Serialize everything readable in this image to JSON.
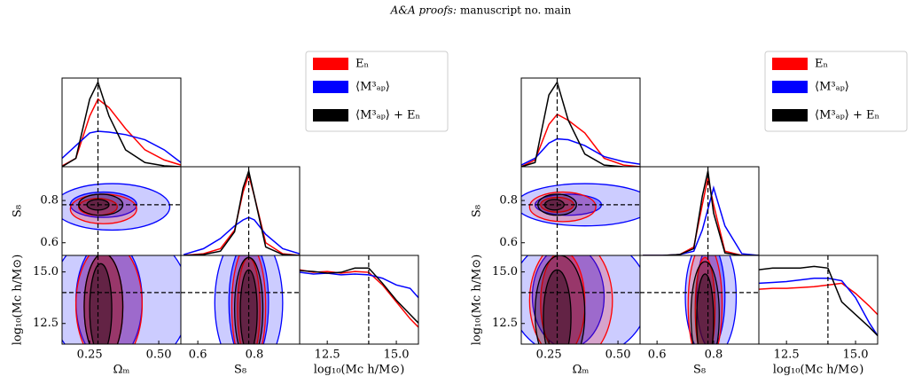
{
  "header": {
    "journal": "A&A proofs:",
    "manuscript": "manuscript no. main"
  },
  "chart_data": [
    {
      "type": "corner",
      "diag_ylim": [
        0,
        1.05
      ],
      "params": [
        {
          "label": "Ωₘ",
          "lim": [
            0.15,
            0.58
          ],
          "ticks": [
            0.25,
            {
              "value": 0.5,
              "label": "0.50"
            }
          ],
          "truth": 0.28,
          "x": [
            0.15,
            0.2,
            0.25,
            0.28,
            0.32,
            0.38,
            0.45,
            0.52,
            0.58
          ]
        },
        {
          "label": "S₈",
          "lim": [
            0.54,
            0.96
          ],
          "ticks": [
            0.6,
            0.8
          ],
          "truth": 0.78,
          "x": [
            0.55,
            0.62,
            0.68,
            0.73,
            0.76,
            0.78,
            0.8,
            0.84,
            0.9,
            0.96
          ]
        },
        {
          "label": "log₁₀(Mc h/M⊙)",
          "lim": [
            11.5,
            15.8
          ],
          "ticks": [
            12.5,
            {
              "value": 15,
              "label": "15.0"
            }
          ],
          "truth": 14.0,
          "x": [
            11.5,
            12,
            12.5,
            13,
            13.5,
            14,
            14.5,
            15,
            15.5,
            15.8
          ]
        }
      ],
      "series": [
        {
          "name": "Eₙ",
          "color": "#ff0000",
          "marginals": [
            [
              0.01,
              0.1,
              0.6,
              0.8,
              0.7,
              0.45,
              0.2,
              0.08,
              0.02
            ],
            [
              0,
              0.02,
              0.08,
              0.3,
              0.75,
              0.95,
              0.7,
              0.15,
              0.02,
              0
            ],
            [
              0.88,
              0.85,
              0.86,
              0.84,
              0.86,
              0.85,
              0.7,
              0.5,
              0.3,
              0.2
            ]
          ],
          "contours": [
            [
              [
                0.3,
                0.76,
                0.12,
                0.07
              ],
              [
                0.28,
                0.77,
                0.07,
                0.04
              ]
            ],
            [
              [
                0.32,
                13.4,
                0.12,
                3.0
              ],
              [
                0.3,
                13.3,
                0.07,
                2.6
              ]
            ],
            [
              [
                0.78,
                13.3,
                0.06,
                3.0
              ],
              [
                0.78,
                13.2,
                0.04,
                2.5
              ]
            ]
          ]
        },
        {
          "name": "⟨M³ₐₚ⟩",
          "color": "#0000ff",
          "marginals": [
            [
              0.1,
              0.25,
              0.4,
              0.42,
              0.41,
              0.38,
              0.32,
              0.2,
              0.05
            ],
            [
              0.01,
              0.08,
              0.2,
              0.35,
              0.42,
              0.45,
              0.42,
              0.25,
              0.08,
              0.02
            ],
            [
              0.85,
              0.83,
              0.84,
              0.82,
              0.83,
              0.82,
              0.78,
              0.7,
              0.66,
              0.55
            ]
          ],
          "contours": [
            [
              [
                0.33,
                0.77,
                0.21,
                0.11
              ],
              [
                0.3,
                0.78,
                0.12,
                0.06
              ]
            ],
            [
              [
                0.36,
                13.6,
                0.25,
                3.5
              ],
              [
                0.32,
                13.6,
                0.12,
                3.0
              ]
            ],
            [
              [
                0.78,
                13.5,
                0.12,
                3.5
              ],
              [
                0.78,
                13.5,
                0.07,
                3.0
              ]
            ]
          ]
        },
        {
          "name": "⟨M³ₐₚ⟩ + Eₙ",
          "color": "#000000",
          "marginals": [
            [
              0,
              0.1,
              0.8,
              1.0,
              0.6,
              0.2,
              0.05,
              0.01,
              0
            ],
            [
              0,
              0.01,
              0.05,
              0.28,
              0.8,
              1.0,
              0.7,
              0.1,
              0.01,
              0
            ],
            [
              0.87,
              0.86,
              0.84,
              0.85,
              0.9,
              0.9,
              0.72,
              0.52,
              0.35,
              0.25
            ]
          ],
          "contours": [
            [
              [
                0.29,
                0.78,
                0.08,
                0.05
              ],
              [
                0.28,
                0.78,
                0.04,
                0.025
              ]
            ],
            [
              [
                0.3,
                13.3,
                0.07,
                2.6
              ],
              [
                0.29,
                13.2,
                0.04,
                2.2
              ]
            ],
            [
              [
                0.78,
                13.2,
                0.05,
                2.5
              ],
              [
                0.78,
                13.1,
                0.03,
                2.0
              ]
            ]
          ]
        }
      ]
    },
    {
      "type": "corner",
      "diag_ylim": [
        0,
        1.05
      ],
      "params": [
        {
          "label": "Ωₘ",
          "lim": [
            0.15,
            0.58
          ],
          "ticks": [
            0.25,
            {
              "value": 0.5,
              "label": "0.50"
            }
          ],
          "truth": 0.28,
          "x": [
            0.15,
            0.2,
            0.25,
            0.28,
            0.32,
            0.38,
            0.45,
            0.52,
            0.58
          ]
        },
        {
          "label": "S₈",
          "lim": [
            0.54,
            0.96
          ],
          "ticks": [
            0.6,
            0.8
          ],
          "truth": 0.78,
          "x": [
            0.55,
            0.62,
            0.68,
            0.73,
            0.76,
            0.78,
            0.8,
            0.84,
            0.9,
            0.96
          ]
        },
        {
          "label": "log₁₀(Mc h/M⊙)",
          "lim": [
            11.5,
            15.8
          ],
          "ticks": [
            12.5,
            {
              "value": 15,
              "label": "15.0"
            }
          ],
          "truth": 14.0,
          "x": [
            11.5,
            12,
            12.5,
            13,
            13.5,
            14,
            14.5,
            15,
            15.5,
            15.8
          ]
        }
      ],
      "series": [
        {
          "name": "Eₙ",
          "color": "#ff0000",
          "marginals": [
            [
              0,
              0.08,
              0.5,
              0.62,
              0.55,
              0.4,
              0.1,
              0.02,
              0
            ],
            [
              0,
              0,
              0.01,
              0.1,
              0.6,
              0.92,
              0.6,
              0.05,
              0,
              0
            ],
            [
              0.65,
              0.66,
              0.66,
              0.67,
              0.68,
              0.7,
              0.72,
              0.6,
              0.45,
              0.35
            ]
          ],
          "contours": [
            [
              [
                0.3,
                0.77,
                0.12,
                0.07
              ],
              [
                0.28,
                0.78,
                0.06,
                0.035
              ]
            ],
            [
              [
                0.33,
                13.6,
                0.15,
                3.0
              ],
              [
                0.3,
                13.5,
                0.08,
                2.5
              ]
            ],
            [
              [
                0.77,
                13.4,
                0.06,
                3.0
              ],
              [
                0.77,
                13.2,
                0.035,
                2.5
              ]
            ]
          ]
        },
        {
          "name": "⟨M³ₐₚ⟩",
          "color": "#0000ff",
          "marginals": [
            [
              0.02,
              0.1,
              0.28,
              0.33,
              0.32,
              0.25,
              0.12,
              0.06,
              0.03
            ],
            [
              0,
              0,
              0.01,
              0.05,
              0.3,
              0.55,
              0.8,
              0.35,
              0.02,
              0
            ],
            [
              0.72,
              0.73,
              0.74,
              0.76,
              0.78,
              0.78,
              0.75,
              0.55,
              0.25,
              0.1
            ]
          ],
          "contours": [
            [
              [
                0.38,
                0.78,
                0.25,
                0.1
              ],
              [
                0.32,
                0.78,
                0.12,
                0.05
              ]
            ],
            [
              [
                0.36,
                13.8,
                0.25,
                3.0
              ],
              [
                0.32,
                13.8,
                0.13,
                2.5
              ]
            ],
            [
              [
                0.79,
                13.8,
                0.09,
                3.0
              ],
              [
                0.79,
                13.8,
                0.05,
                2.5
              ]
            ]
          ]
        },
        {
          "name": "⟨M³ₐₚ⟩ + Eₙ",
          "color": "#000000",
          "marginals": [
            [
              0,
              0.05,
              0.85,
              1.0,
              0.55,
              0.15,
              0.02,
              0,
              0
            ],
            [
              0,
              0,
              0.01,
              0.08,
              0.7,
              1.0,
              0.5,
              0.03,
              0,
              0
            ],
            [
              0.88,
              0.9,
              0.9,
              0.9,
              0.92,
              0.9,
              0.5,
              0.35,
              0.2,
              0.1
            ]
          ],
          "contours": [
            [
              [
                0.28,
                0.78,
                0.07,
                0.05
              ],
              [
                0.27,
                0.78,
                0.035,
                0.025
              ]
            ],
            [
              [
                0.29,
                13.0,
                0.09,
                2.8
              ],
              [
                0.28,
                12.8,
                0.05,
                2.3
              ]
            ],
            [
              [
                0.77,
                12.9,
                0.05,
                2.6
              ],
              [
                0.77,
                12.7,
                0.03,
                2.2
              ]
            ]
          ]
        }
      ]
    }
  ]
}
